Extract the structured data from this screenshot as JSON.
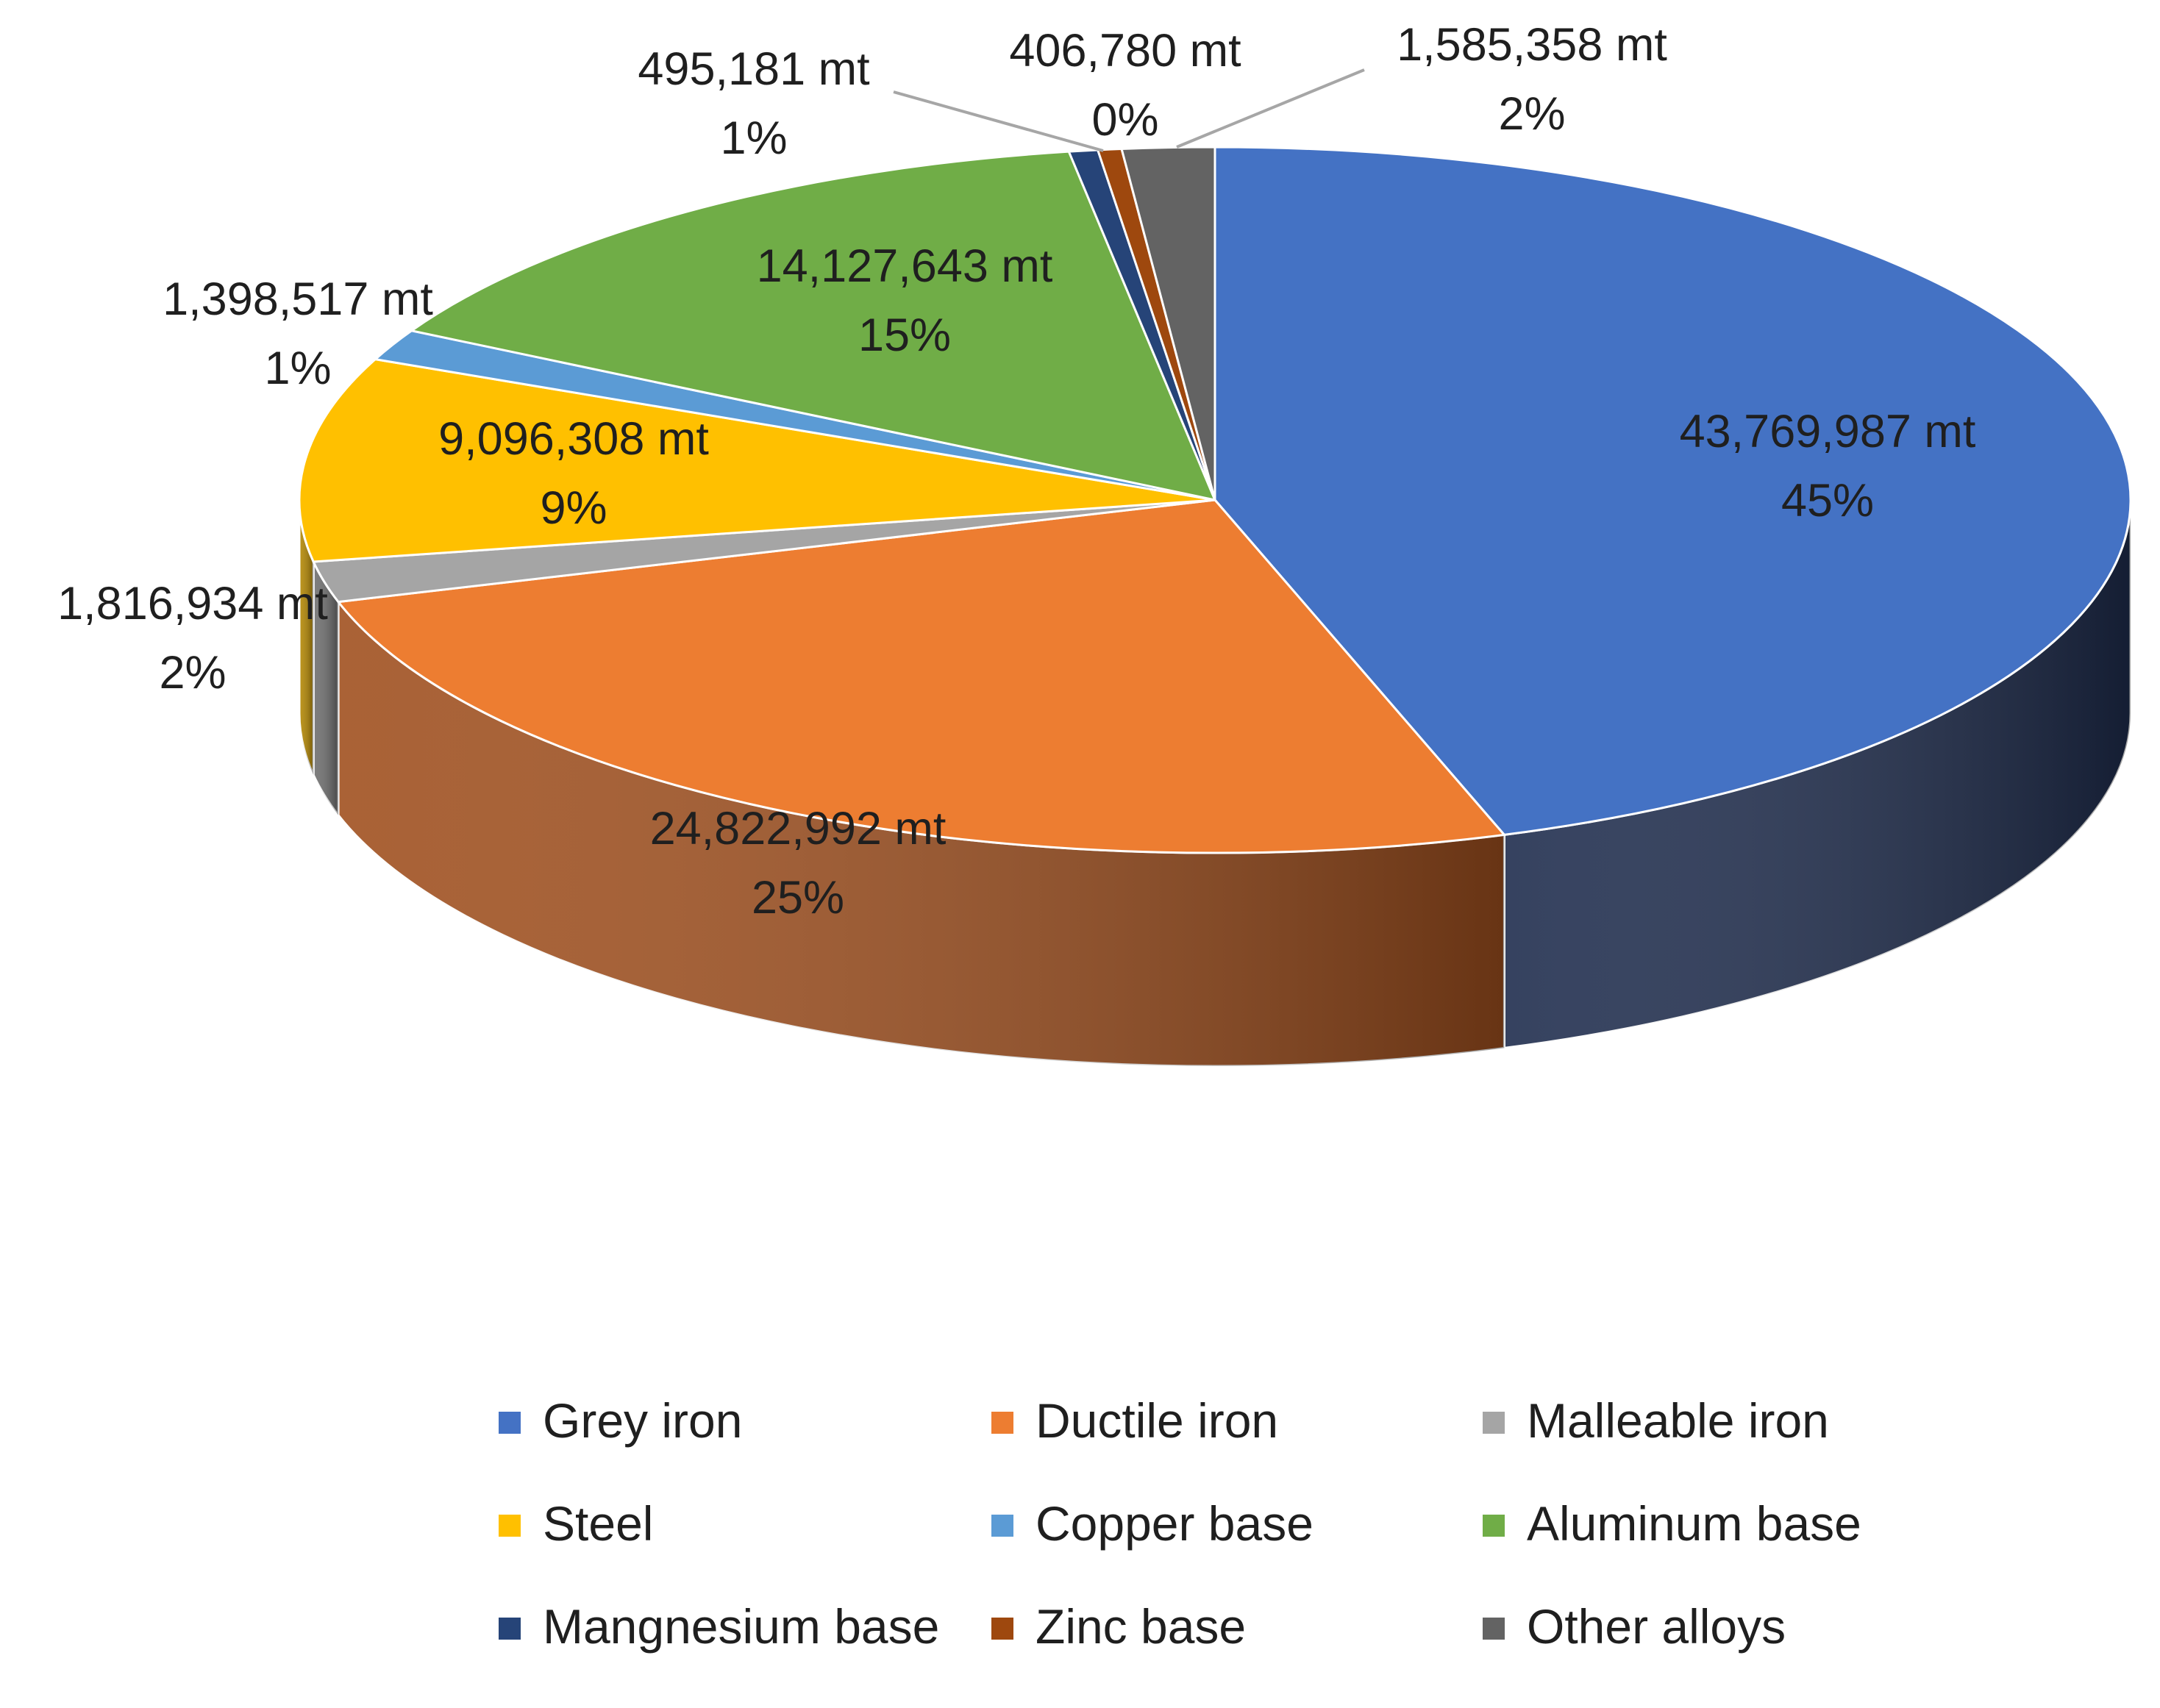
{
  "chart_data": {
    "type": "pie",
    "title": "",
    "style": "3d-exploded-none",
    "unit_suffix": " mt",
    "slices": [
      {
        "name": "Grey iron",
        "value": 43769987,
        "value_label": "43,769,987 mt",
        "percent_label": "45%",
        "color": "#4472C4",
        "side_color": "#1F2D4E"
      },
      {
        "name": "Ductile iron",
        "value": 24822992,
        "value_label": "24,822,992 mt",
        "percent_label": "25%",
        "color": "#ED7D31",
        "side_color": "#A0501F"
      },
      {
        "name": "Malleable iron",
        "value": 1816934,
        "value_label": "1,816,934 mt",
        "percent_label": "2%",
        "color": "#A5A5A5",
        "side_color": "#6E6E6E"
      },
      {
        "name": "Steel",
        "value": 9096308,
        "value_label": "9,096,308 mt",
        "percent_label": "9%",
        "color": "#FFC000",
        "side_color": "#B38600"
      },
      {
        "name": "Copper base",
        "value": 1398517,
        "value_label": "1,398,517 mt",
        "percent_label": "1%",
        "color": "#5B9BD5",
        "side_color": "#3A6A94"
      },
      {
        "name": "Aluminum base",
        "value": 14127643,
        "value_label": "14,127,643 mt",
        "percent_label": "15%",
        "color": "#70AD47",
        "side_color": "#4C7A2F"
      },
      {
        "name": "Mangnesium base",
        "value": 495181,
        "value_label": "495,181 mt",
        "percent_label": "1%",
        "color": "#264478",
        "side_color": "#17294A"
      },
      {
        "name": "Zinc base",
        "value": 406780,
        "value_label": "406,780 mt",
        "percent_label": "0%",
        "color": "#9E480E",
        "side_color": "#5E2A08"
      },
      {
        "name": "Other alloys",
        "value": 1585358,
        "value_label": "1,585,358 mt",
        "percent_label": "2%",
        "color": "#636363",
        "side_color": "#3E3E3E"
      }
    ],
    "legend": {
      "position": "bottom",
      "columns": 3,
      "items": [
        "Grey iron",
        "Ductile iron",
        "Malleable iron",
        "Steel",
        "Copper base",
        "Aluminum base",
        "Mangnesium base",
        "Zinc base",
        "Other alloys"
      ]
    }
  }
}
